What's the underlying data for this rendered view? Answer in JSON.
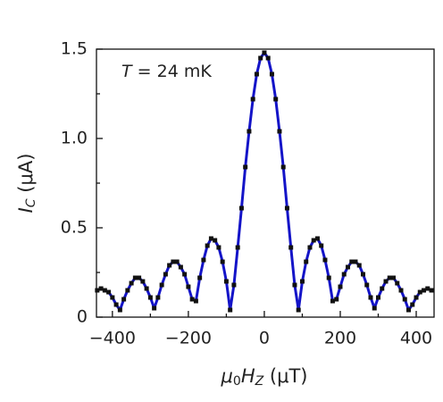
{
  "chart_data": {
    "type": "line",
    "annotation": {
      "symbol": "T",
      "text": " = 24 mK"
    },
    "xlabel": [
      "μ",
      "0",
      "H",
      "Z",
      " (μT)"
    ],
    "ylabel": [
      "I",
      "C",
      " (μA)"
    ],
    "x": [
      -440,
      -430,
      -420,
      -410,
      -400,
      -390,
      -380,
      -370,
      -360,
      -350,
      -340,
      -330,
      -320,
      -310,
      -300,
      -290,
      -280,
      -270,
      -260,
      -250,
      -240,
      -230,
      -220,
      -210,
      -200,
      -190,
      -180,
      -170,
      -160,
      -150,
      -140,
      -130,
      -120,
      -110,
      -100,
      -90,
      -80,
      -70,
      -60,
      -50,
      -40,
      -30,
      -20,
      -10,
      0,
      10,
      20,
      30,
      40,
      50,
      60,
      70,
      80,
      90,
      100,
      110,
      120,
      130,
      140,
      150,
      160,
      170,
      180,
      190,
      200,
      210,
      220,
      230,
      240,
      250,
      260,
      270,
      280,
      290,
      300,
      310,
      320,
      330,
      340,
      350,
      360,
      370,
      380,
      390,
      400,
      410,
      420,
      430,
      440
    ],
    "series": [
      {
        "color": "#1414c8",
        "marker_color": "#111111",
        "values": [
          0.15,
          0.16,
          0.15,
          0.14,
          0.11,
          0.07,
          0.04,
          0.1,
          0.15,
          0.19,
          0.22,
          0.22,
          0.2,
          0.16,
          0.11,
          0.05,
          0.11,
          0.18,
          0.24,
          0.29,
          0.31,
          0.31,
          0.28,
          0.24,
          0.17,
          0.1,
          0.09,
          0.22,
          0.32,
          0.4,
          0.44,
          0.43,
          0.39,
          0.31,
          0.2,
          0.04,
          0.18,
          0.39,
          0.61,
          0.84,
          1.04,
          1.22,
          1.36,
          1.45,
          1.48,
          1.45,
          1.36,
          1.22,
          1.04,
          0.84,
          0.61,
          0.39,
          0.18,
          0.04,
          0.2,
          0.31,
          0.39,
          0.43,
          0.44,
          0.4,
          0.32,
          0.22,
          0.09,
          0.1,
          0.17,
          0.24,
          0.28,
          0.31,
          0.31,
          0.29,
          0.24,
          0.18,
          0.11,
          0.05,
          0.11,
          0.16,
          0.2,
          0.22,
          0.22,
          0.19,
          0.15,
          0.1,
          0.04,
          0.07,
          0.11,
          0.14,
          0.15,
          0.16,
          0.15
        ]
      }
    ],
    "xlim": [
      -442,
      447
    ],
    "ylim": [
      0,
      1.5
    ],
    "xticks": [
      {
        "value": -400,
        "label": "−400"
      },
      {
        "value": -200,
        "label": "−200"
      },
      0,
      200,
      400
    ],
    "yticks": [
      0,
      0.5,
      {
        "value": 1,
        "label": "1.0"
      },
      1.5
    ],
    "xticks_minor": [
      -300,
      -100,
      100,
      300
    ],
    "yticks_minor": [
      0.25,
      0.75,
      1.25
    ]
  }
}
